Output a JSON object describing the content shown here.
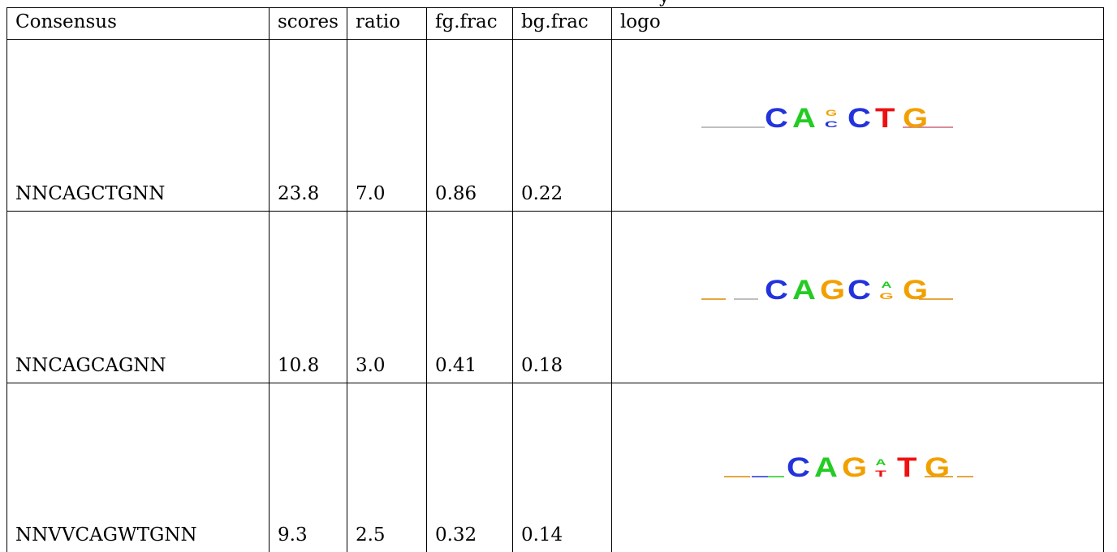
{
  "table": {
    "headers": [
      "Consensus",
      "scores",
      "ratio",
      "fg.frac",
      "bg.frac",
      "logo"
    ],
    "rows": [
      {
        "consensus": "NNCAGCTGNN",
        "scores": "23.8",
        "ratio": "7.0",
        "fg_frac": "0.86",
        "bg_frac": "0.22",
        "logo": {
          "letters": [
            {
              "char": "C",
              "color": "#2233dd"
            },
            {
              "char": "A",
              "color": "#22cc22"
            },
            {
              "char": "G",
              "color": "#f2a000",
              "stacked_small": [
                "G",
                "C"
              ]
            },
            {
              "char": "C",
              "color": "#2233dd"
            },
            {
              "char": "T",
              "color": "#ee1111"
            },
            {
              "char": "G",
              "color": "#f2a000"
            }
          ]
        }
      },
      {
        "consensus": "NNCAGCAGNN",
        "scores": "10.8",
        "ratio": "3.0",
        "fg_frac": "0.41",
        "bg_frac": "0.18",
        "logo": {
          "letters": [
            {
              "char": "C",
              "color": "#2233dd"
            },
            {
              "char": "A",
              "color": "#22cc22"
            },
            {
              "char": "G",
              "color": "#f2a000"
            },
            {
              "char": "C",
              "color": "#2233dd"
            },
            {
              "char": "A",
              "color": "#22cc22",
              "stacked_small": [
                "A",
                "G"
              ]
            },
            {
              "char": "G",
              "color": "#f2a000"
            }
          ]
        }
      },
      {
        "consensus": "NNVVCAGWTGNN",
        "scores": "9.3",
        "ratio": "2.5",
        "fg_frac": "0.32",
        "bg_frac": "0.14",
        "logo": {
          "letters": [
            {
              "char": "C",
              "color": "#2233dd"
            },
            {
              "char": "A",
              "color": "#22cc22"
            },
            {
              "char": "G",
              "color": "#f2a000"
            },
            {
              "char": "A",
              "color": "#22cc22",
              "stacked_small": [
                "A",
                "T"
              ]
            },
            {
              "char": "T",
              "color": "#ee1111"
            },
            {
              "char": "G",
              "color": "#f2a000"
            }
          ]
        }
      }
    ]
  },
  "colors": {
    "A": "#22cc22",
    "C": "#2233dd",
    "G": "#f2a000",
    "T": "#ee1111"
  }
}
